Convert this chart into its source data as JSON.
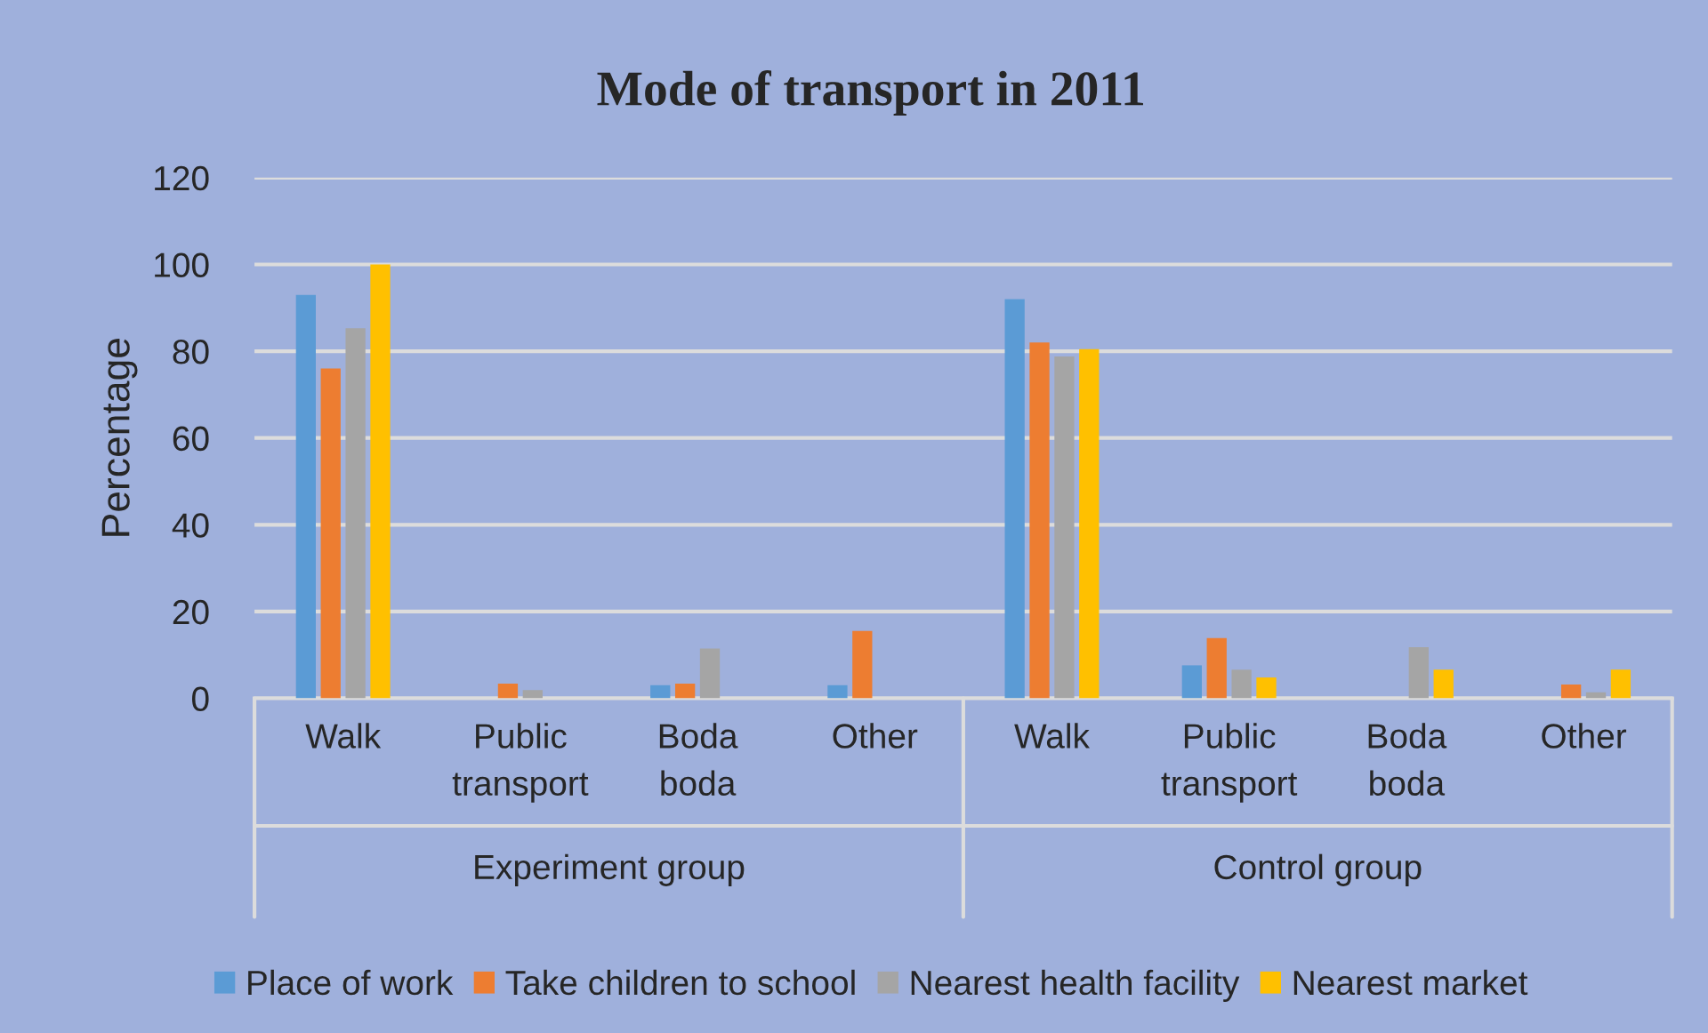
{
  "chart_data": {
    "type": "bar",
    "title": "Mode of transport in 2011",
    "ylabel": "Percentage",
    "categories": [
      "Walk",
      "Public transport",
      "Boda boda",
      "Other",
      "Walk",
      "Public transport",
      "Boda boda",
      "Other"
    ],
    "series": [
      {
        "name": "Place of work",
        "color": "#5b9bd5",
        "values": [
          93,
          0,
          3,
          3,
          92,
          7.6,
          0,
          0
        ]
      },
      {
        "name": "Take children to school",
        "color": "#ed7d31",
        "values": [
          76,
          3.4,
          3.4,
          15.5,
          82,
          13.9,
          0,
          3.2
        ]
      },
      {
        "name": "Nearest health facility",
        "color": "#a5a5a5",
        "values": [
          85.3,
          1.9,
          11.5,
          0,
          78.8,
          6.6,
          11.8,
          1.4
        ]
      },
      {
        "name": "Nearest market",
        "color": "#ffc000",
        "values": [
          100,
          0,
          0,
          0,
          80.5,
          4.8,
          6.6,
          6.6
        ]
      }
    ],
    "annotations": [
      "Experiment group",
      "Control group"
    ],
    "ylim": [
      0,
      120
    ],
    "yticks": [
      0,
      20,
      40,
      60,
      80,
      100,
      120
    ],
    "grid": "y",
    "legend": "bottom"
  }
}
